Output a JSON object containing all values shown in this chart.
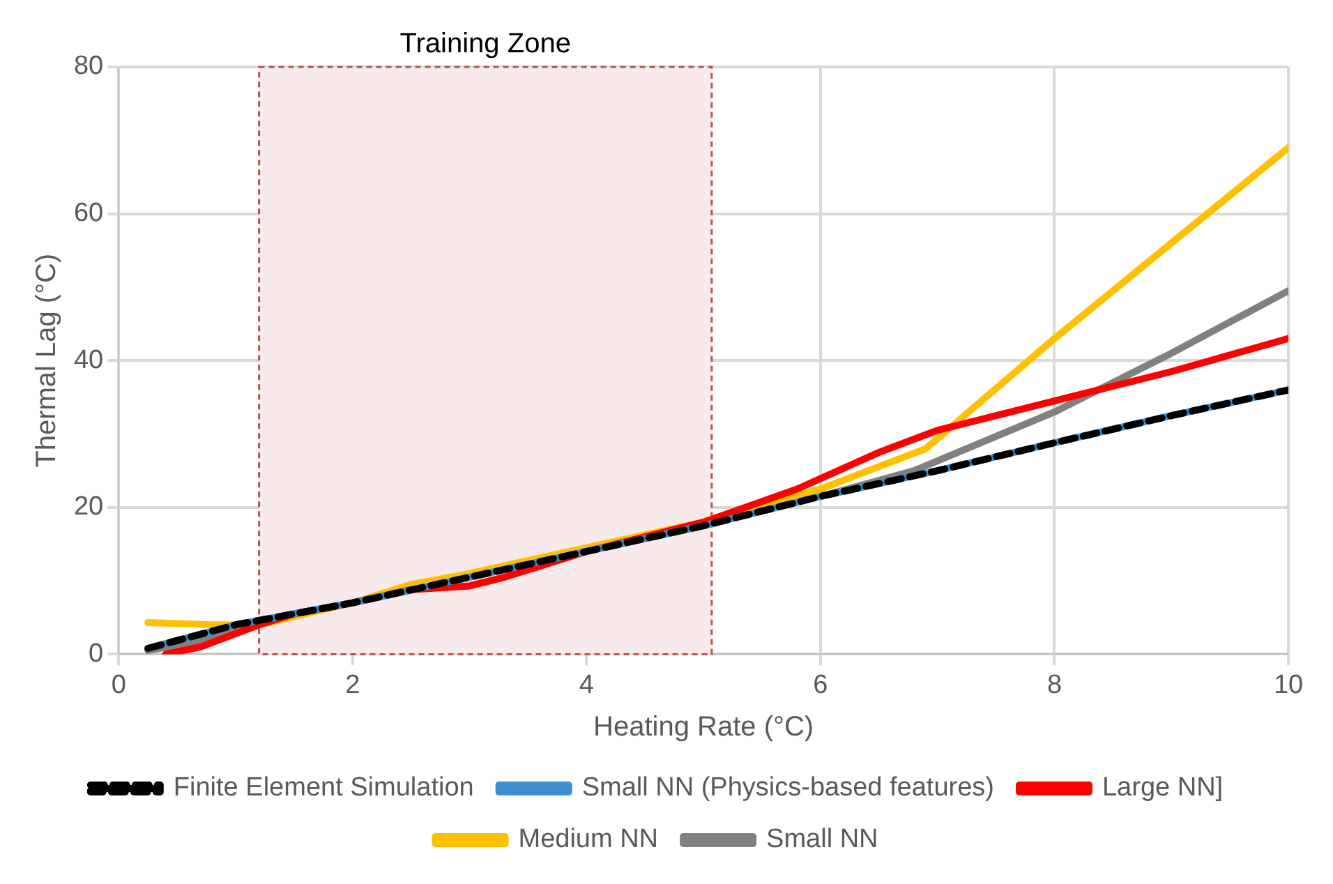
{
  "chart_data": {
    "type": "line",
    "xlabel": "Heating Rate (°C)",
    "ylabel": "Thermal Lag (°C)",
    "xlim": [
      0,
      10
    ],
    "xticks": [
      0,
      2,
      4,
      6,
      8,
      10
    ],
    "ylim": [
      0,
      80
    ],
    "yticks": [
      0,
      20,
      40,
      60,
      80
    ],
    "grid": true,
    "legend": "bottom",
    "marker": "none",
    "bands": [
      {
        "axis": "x",
        "from": 1.2,
        "to": 5.07,
        "label": "Training Zone",
        "color": "#f8eaea"
      }
    ],
    "series": [
      {
        "name": "Small NN",
        "color": "#808080",
        "x": [
          0.25,
          0.75,
          1.5,
          2,
          3,
          4,
          5,
          6,
          6.8,
          8,
          9,
          10
        ],
        "values": [
          0.5,
          2,
          5.5,
          7,
          10.5,
          14,
          17.5,
          21.5,
          25,
          33,
          41,
          49.5
        ]
      },
      {
        "name": "Medium NN",
        "color": "#ffc000",
        "x": [
          0.25,
          0.8,
          1.2,
          2,
          2.5,
          3,
          4,
          5,
          6,
          6.9,
          8,
          9,
          10
        ],
        "values": [
          4.3,
          4,
          4,
          7,
          9.5,
          11,
          14.5,
          18,
          22.5,
          28,
          43,
          56,
          69
        ]
      },
      {
        "name": "Large NN]",
        "color": "#ff0000",
        "x": [
          0.4,
          0.7,
          1.2,
          1.5,
          2,
          2.5,
          3,
          3.3,
          4,
          5,
          5.8,
          6.5,
          7,
          8,
          9,
          10
        ],
        "values": [
          0,
          1,
          4,
          5.5,
          7,
          8.8,
          9.3,
          10.5,
          14,
          18,
          22.5,
          27.5,
          30.5,
          34.5,
          38.5,
          43
        ]
      },
      {
        "name": "Small NN (Physics-based features)",
        "color": "#3c8fd0",
        "x": [
          0.25,
          1,
          2,
          3,
          4,
          5,
          6,
          7,
          8,
          9,
          10
        ],
        "values": [
          0.8,
          4,
          7,
          10.5,
          14,
          17.5,
          21.5,
          25,
          28.8,
          32.5,
          36
        ]
      },
      {
        "name": "Finite Element Simulation",
        "color": "#000000",
        "line_style": "dashed",
        "x": [
          0.25,
          1,
          2,
          3,
          4,
          5,
          6,
          7,
          8,
          9,
          10
        ],
        "values": [
          0.8,
          4,
          7,
          10.5,
          14,
          17.5,
          21.5,
          25,
          28.8,
          32.5,
          36
        ]
      }
    ]
  }
}
